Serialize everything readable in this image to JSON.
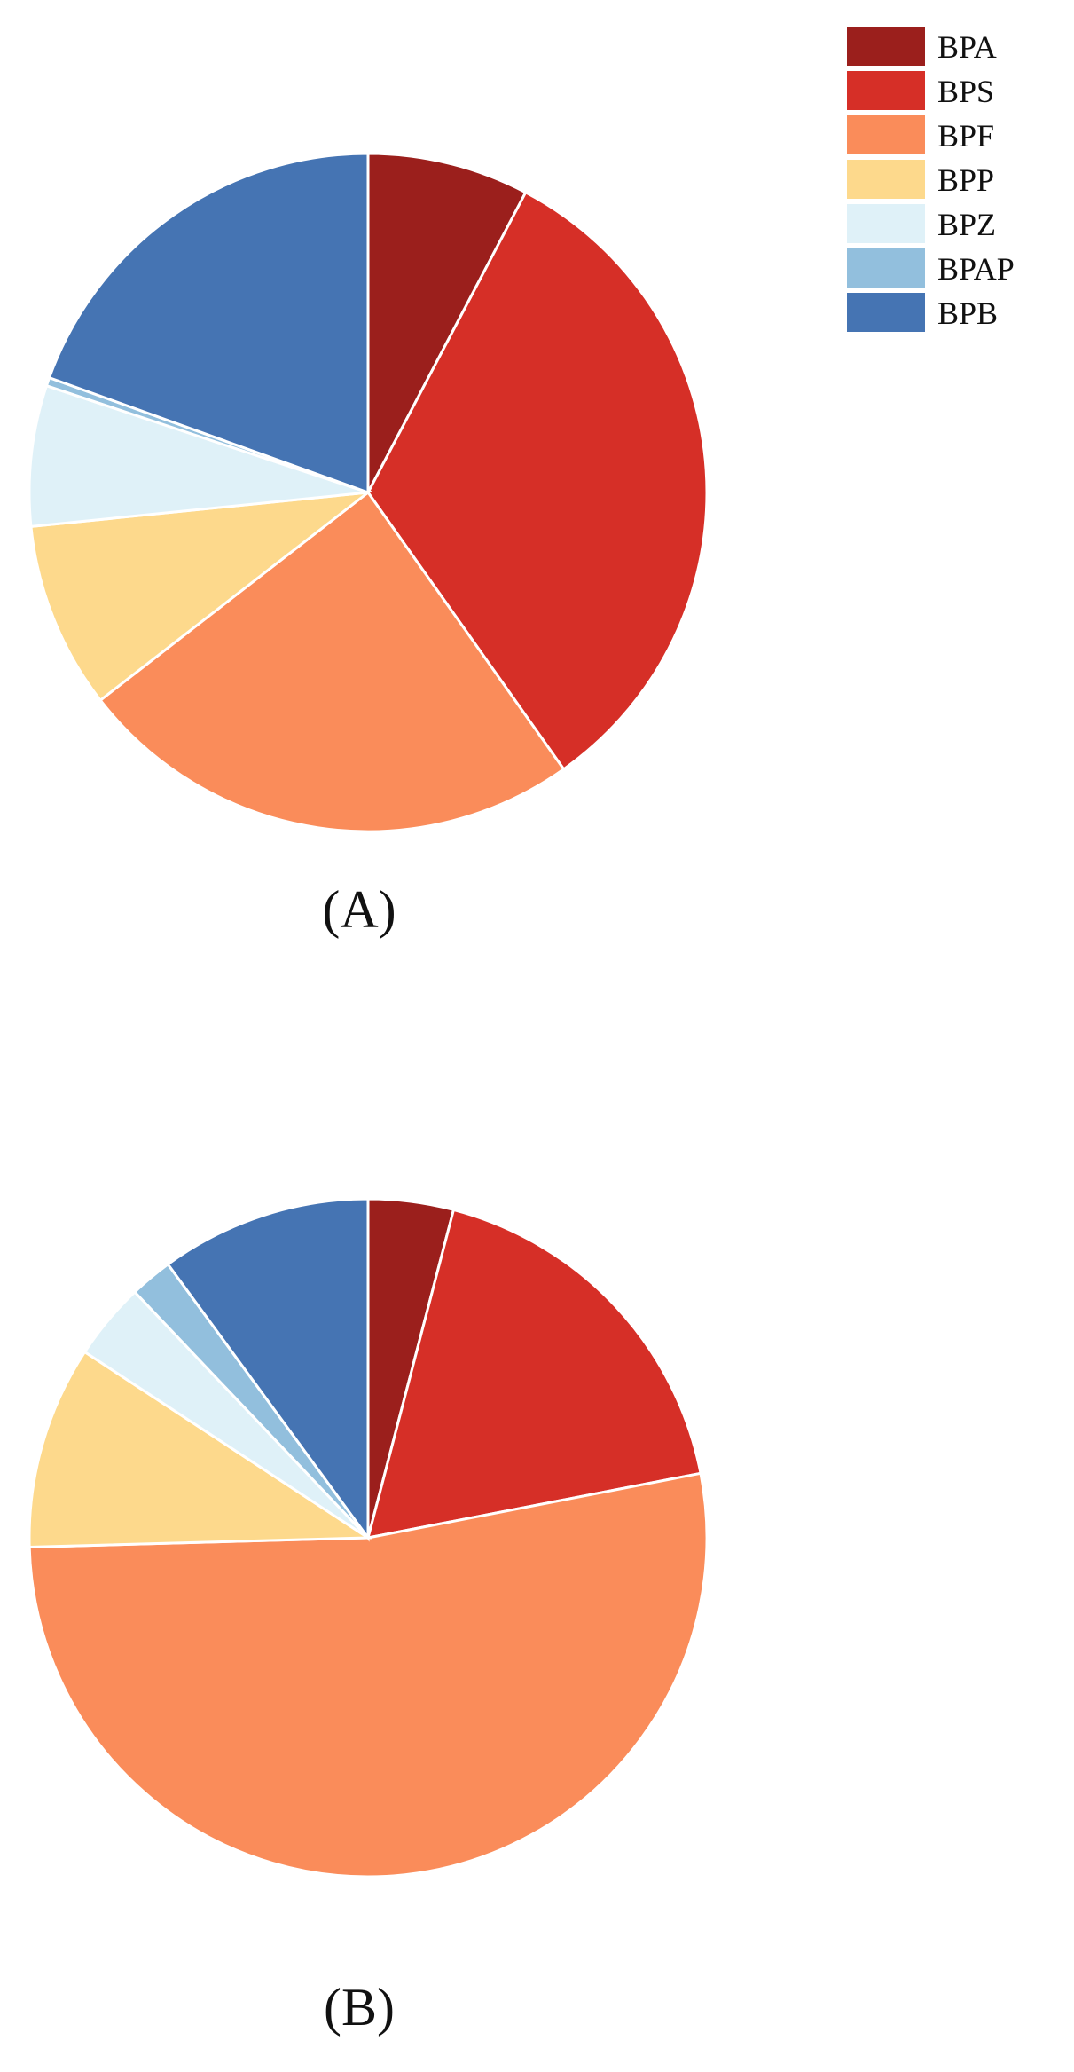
{
  "legend": {
    "items": [
      {
        "label": "BPA",
        "color": "#9B1F1C"
      },
      {
        "label": "BPS",
        "color": "#D62F27"
      },
      {
        "label": "BPF",
        "color": "#FA8C5A"
      },
      {
        "label": "BPP",
        "color": "#FDD98C"
      },
      {
        "label": "BPZ",
        "color": "#DFF1F8"
      },
      {
        "label": "BPAP",
        "color": "#92BFDD"
      },
      {
        "label": "BPB",
        "color": "#4574B3"
      }
    ]
  },
  "chart_data": [
    {
      "type": "pie",
      "panel_label": "(A)",
      "categories": [
        "BPA",
        "BPS",
        "BPF",
        "BPP",
        "BPZ",
        "BPAP",
        "BPB"
      ],
      "values": [
        7.7,
        32.5,
        24.3,
        8.9,
        6.7,
        0.4,
        19.5
      ],
      "unit": "%",
      "start": "12 o'clock",
      "direction": "clockwise",
      "legend_position": "top-right"
    },
    {
      "type": "pie",
      "panel_label": "(B)",
      "categories": [
        "BPA",
        "BPS",
        "BPF",
        "BPP",
        "BPZ",
        "BPAP",
        "BPB"
      ],
      "values": [
        4.2,
        18.5,
        54.4,
        10.0,
        3.8,
        2.1,
        10.4
      ],
      "unit": "%",
      "start": "12 o'clock",
      "direction": "clockwise"
    }
  ]
}
